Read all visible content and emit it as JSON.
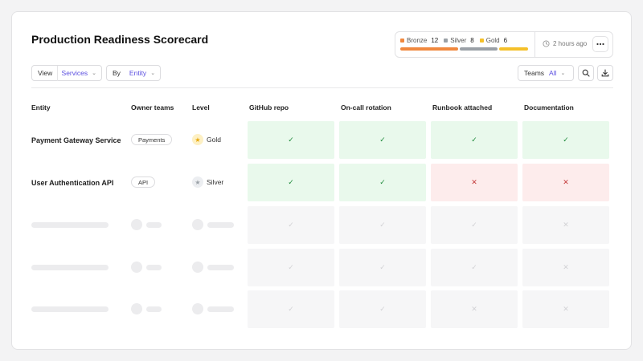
{
  "title": "Production Readiness Scorecard",
  "summary": {
    "levels": [
      {
        "name": "Bronze",
        "count": "12",
        "color": "#f0883e"
      },
      {
        "name": "Silver",
        "count": "8",
        "color": "#9aa0a6"
      },
      {
        "name": "Gold",
        "count": "6",
        "color": "#f5c02a"
      }
    ],
    "updated": "2 hours ago",
    "more_icon": "more-horizontal-icon"
  },
  "toolbar": {
    "view_label": "View",
    "view_value": "Services",
    "by_label": "By",
    "by_value": "Entity",
    "teams_label": "Teams",
    "teams_value": "All",
    "search_icon": "search-icon",
    "download_icon": "download-icon"
  },
  "table": {
    "columns": [
      "Entity",
      "Owner teams",
      "Level",
      "GitHub repo",
      "On-call rotation",
      "Runbook attached",
      "Documentation"
    ],
    "rows": [
      {
        "entity": "Payment Gateway Service",
        "team": "Payments",
        "level": "Gold",
        "level_color": "#f5c02a",
        "checks": [
          "pass",
          "pass",
          "pass",
          "pass"
        ]
      },
      {
        "entity": "User Authentication API",
        "team": "API",
        "level": "Silver",
        "level_color": "#9aa0a6",
        "checks": [
          "pass",
          "pass",
          "fail",
          "fail"
        ]
      }
    ],
    "skeleton_rows": [
      {
        "checks": [
          "pass",
          "pass",
          "pass",
          "fail"
        ]
      },
      {
        "checks": [
          "pass",
          "pass",
          "pass",
          "fail"
        ]
      },
      {
        "checks": [
          "pass",
          "pass",
          "fail",
          "fail"
        ]
      }
    ]
  },
  "colors": {
    "accent": "#5b4fe0",
    "pass_bg": "#e9f9ec",
    "fail_bg": "#fdecec"
  }
}
